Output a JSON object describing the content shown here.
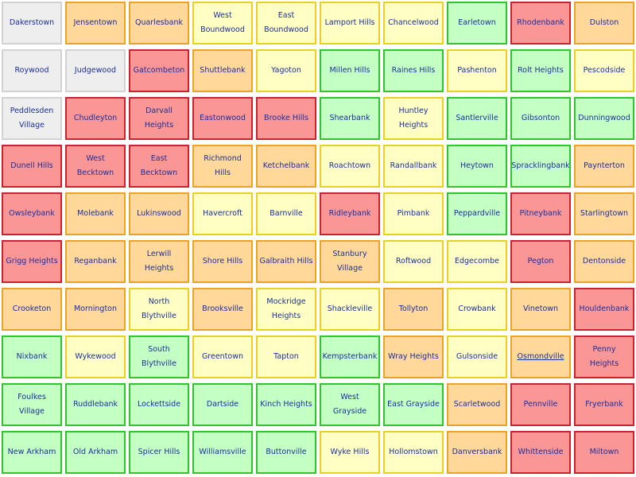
{
  "colors": {
    "gray": "#eeeeee",
    "red": "#fa9696",
    "orange": "#ffd89a",
    "yellow": "#ffffc4",
    "green": "#c4ffc4",
    "text": "#1a2e9c"
  },
  "rows": [
    [
      {
        "name": "Dakerstown",
        "status": "gray"
      },
      {
        "name": "Jensentown",
        "status": "orange"
      },
      {
        "name": "Quarlesbank",
        "status": "orange"
      },
      {
        "name": "West Boundwood",
        "status": "yellow"
      },
      {
        "name": "East Boundwood",
        "status": "yellow"
      },
      {
        "name": "Lamport Hills",
        "status": "yellow"
      },
      {
        "name": "Chancelwood",
        "status": "yellow"
      },
      {
        "name": "Earletown",
        "status": "green"
      },
      {
        "name": "Rhodenbank",
        "status": "red"
      },
      {
        "name": "Dulston",
        "status": "orange"
      }
    ],
    [
      {
        "name": "Roywood",
        "status": "gray"
      },
      {
        "name": "Judgewood",
        "status": "gray"
      },
      {
        "name": "Gatcombeton",
        "status": "red"
      },
      {
        "name": "Shuttlebank",
        "status": "orange"
      },
      {
        "name": "Yagoton",
        "status": "yellow"
      },
      {
        "name": "Millen Hills",
        "status": "green"
      },
      {
        "name": "Raines Hills",
        "status": "green"
      },
      {
        "name": "Pashenton",
        "status": "yellow"
      },
      {
        "name": "Rolt Heights",
        "status": "green"
      },
      {
        "name": "Pescodside",
        "status": "yellow"
      }
    ],
    [
      {
        "name": "Peddlesden Village",
        "status": "gray"
      },
      {
        "name": "Chudleyton",
        "status": "red"
      },
      {
        "name": "Darvall Heights",
        "status": "red"
      },
      {
        "name": "Eastonwood",
        "status": "red"
      },
      {
        "name": "Brooke Hills",
        "status": "red"
      },
      {
        "name": "Shearbank",
        "status": "green"
      },
      {
        "name": "Huntley Heights",
        "status": "yellow"
      },
      {
        "name": "Santlerville",
        "status": "green"
      },
      {
        "name": "Gibsonton",
        "status": "green"
      },
      {
        "name": "Dunningwood",
        "status": "green"
      }
    ],
    [
      {
        "name": "Dunell Hills",
        "status": "red"
      },
      {
        "name": "West Becktown",
        "status": "red"
      },
      {
        "name": "East Becktown",
        "status": "red"
      },
      {
        "name": "Richmond Hills",
        "status": "orange"
      },
      {
        "name": "Ketchelbank",
        "status": "orange"
      },
      {
        "name": "Roachtown",
        "status": "yellow"
      },
      {
        "name": "Randallbank",
        "status": "yellow"
      },
      {
        "name": "Heytown",
        "status": "green"
      },
      {
        "name": "Spracklingbank",
        "status": "green"
      },
      {
        "name": "Paynterton",
        "status": "orange"
      }
    ],
    [
      {
        "name": "Owsleybank",
        "status": "red"
      },
      {
        "name": "Molebank",
        "status": "orange"
      },
      {
        "name": "Lukinswood",
        "status": "orange"
      },
      {
        "name": "Havercroft",
        "status": "yellow"
      },
      {
        "name": "Barnville",
        "status": "yellow"
      },
      {
        "name": "Ridleybank",
        "status": "red"
      },
      {
        "name": "Pimbank",
        "status": "yellow"
      },
      {
        "name": "Peppardville",
        "status": "green"
      },
      {
        "name": "Pitneybank",
        "status": "red"
      },
      {
        "name": "Starlingtown",
        "status": "orange"
      }
    ],
    [
      {
        "name": "Grigg Heights",
        "status": "red"
      },
      {
        "name": "Reganbank",
        "status": "orange"
      },
      {
        "name": "Lerwill Heights",
        "status": "orange"
      },
      {
        "name": "Shore Hills",
        "status": "orange"
      },
      {
        "name": "Galbraith Hills",
        "status": "orange"
      },
      {
        "name": "Stanbury Village",
        "status": "orange"
      },
      {
        "name": "Roftwood",
        "status": "yellow"
      },
      {
        "name": "Edgecombe",
        "status": "yellow"
      },
      {
        "name": "Pegton",
        "status": "red"
      },
      {
        "name": "Dentonside",
        "status": "orange"
      }
    ],
    [
      {
        "name": "Crooketon",
        "status": "orange"
      },
      {
        "name": "Mornington",
        "status": "orange"
      },
      {
        "name": "North Blythville",
        "status": "yellow"
      },
      {
        "name": "Brooksville",
        "status": "orange"
      },
      {
        "name": "Mockridge Heights",
        "status": "yellow"
      },
      {
        "name": "Shackleville",
        "status": "yellow"
      },
      {
        "name": "Tollyton",
        "status": "orange"
      },
      {
        "name": "Crowbank",
        "status": "yellow"
      },
      {
        "name": "Vinetown",
        "status": "orange"
      },
      {
        "name": "Houldenbank",
        "status": "red"
      }
    ],
    [
      {
        "name": "Nixbank",
        "status": "green"
      },
      {
        "name": "Wykewood",
        "status": "yellow"
      },
      {
        "name": "South Blythville",
        "status": "green"
      },
      {
        "name": "Greentown",
        "status": "yellow"
      },
      {
        "name": "Tapton",
        "status": "yellow"
      },
      {
        "name": "Kempsterbank",
        "status": "green"
      },
      {
        "name": "Wray Heights",
        "status": "orange"
      },
      {
        "name": "Gulsonside",
        "status": "yellow"
      },
      {
        "name": "Osmondville",
        "status": "orange",
        "link": true
      },
      {
        "name": "Penny Heights",
        "status": "red"
      }
    ],
    [
      {
        "name": "Foulkes Village",
        "status": "green"
      },
      {
        "name": "Ruddlebank",
        "status": "green"
      },
      {
        "name": "Lockettside",
        "status": "green"
      },
      {
        "name": "Dartside",
        "status": "green"
      },
      {
        "name": "Kinch Heights",
        "status": "green"
      },
      {
        "name": "West Grayside",
        "status": "green"
      },
      {
        "name": "East Grayside",
        "status": "green"
      },
      {
        "name": "Scarletwood",
        "status": "orange"
      },
      {
        "name": "Pennville",
        "status": "red"
      },
      {
        "name": "Fryerbank",
        "status": "red"
      }
    ],
    [
      {
        "name": "New Arkham",
        "status": "green"
      },
      {
        "name": "Old Arkham",
        "status": "green"
      },
      {
        "name": "Spicer Hills",
        "status": "green"
      },
      {
        "name": "Williamsville",
        "status": "green"
      },
      {
        "name": "Buttonville",
        "status": "green"
      },
      {
        "name": "Wyke Hills",
        "status": "yellow"
      },
      {
        "name": "Hollomstown",
        "status": "yellow"
      },
      {
        "name": "Danversbank",
        "status": "orange"
      },
      {
        "name": "Whittenside",
        "status": "red"
      },
      {
        "name": "Miltown",
        "status": "red"
      }
    ]
  ]
}
